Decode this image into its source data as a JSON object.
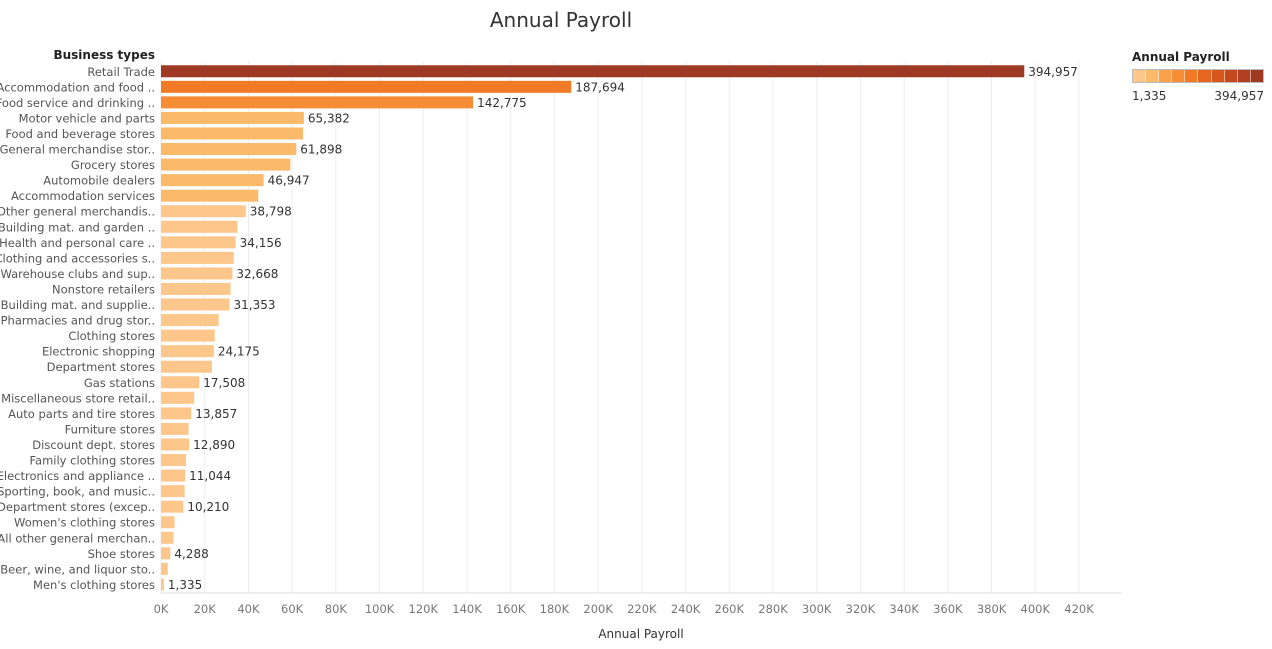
{
  "chart_data": {
    "type": "bar",
    "orientation": "horizontal",
    "title": "Annual Payroll",
    "row_header": "Business types",
    "xlabel": "Annual Payroll",
    "xlim": [
      0,
      420000
    ],
    "x_ticks": [
      "0K",
      "20K",
      "40K",
      "60K",
      "80K",
      "100K",
      "120K",
      "140K",
      "160K",
      "180K",
      "200K",
      "220K",
      "240K",
      "260K",
      "280K",
      "300K",
      "320K",
      "340K",
      "360K",
      "380K",
      "400K",
      "420K"
    ],
    "grid": true,
    "categories": [
      "Retail Trade",
      "Accommodation and food ..",
      "Food service and drinking ..",
      "Motor vehicle and parts",
      "Food and beverage stores",
      "General merchandise stor..",
      "Grocery stores",
      "Automobile dealers",
      "Accommodation services",
      "Other general merchandis..",
      "Building mat. and garden ..",
      "Health and personal care ..",
      "Clothing and accessories s..",
      "Warehouse clubs and sup..",
      "Nonstore retailers",
      "Building mat. and supplie..",
      "Pharmacies and drug stor..",
      "Clothing stores",
      "Electronic shopping",
      "Department stores",
      "Gas stations",
      "Miscellaneous store retail..",
      "Auto parts and tire stores",
      "Furniture stores",
      "Discount dept. stores",
      "Family clothing stores",
      "Electronics and appliance ..",
      "Sporting, book, and  music..",
      "Department stores (excep..",
      "Women's clothing stores",
      "All other general merchan..",
      "Shoe stores",
      "Beer, wine, and liquor sto..",
      "Men's clothing stores"
    ],
    "values": [
      394957,
      187694,
      142775,
      65382,
      65000,
      61898,
      59200,
      46947,
      44500,
      38798,
      35000,
      34156,
      33300,
      32668,
      31800,
      31353,
      26400,
      24600,
      24175,
      23300,
      17508,
      15200,
      13857,
      12600,
      12890,
      11500,
      11044,
      10800,
      10210,
      6200,
      5700,
      4288,
      3100,
      1335
    ],
    "value_labels": [
      "394,957",
      "187,694",
      "142,775",
      "65,382",
      "",
      "61,898",
      "",
      "46,947",
      "",
      "38,798",
      "",
      "34,156",
      "",
      "32,668",
      "",
      "31,353",
      "",
      "",
      "24,175",
      "",
      "17,508",
      "",
      "13,857",
      "",
      "12,890",
      "",
      "11,044",
      "",
      "10,210",
      "",
      "",
      "4,288",
      "",
      "1,335"
    ],
    "legend": {
      "title": "Annual Payroll",
      "min_label": "1,335",
      "max_label": "394,957",
      "min": 1335,
      "max": 394957,
      "position": "top-right"
    },
    "colors": [
      "#fdc68a",
      "#fbb96a",
      "#f9a14a",
      "#f68c33",
      "#f07a25",
      "#e5661f",
      "#d6561e",
      "#c4491f",
      "#b13f22",
      "#9e3a24"
    ]
  }
}
